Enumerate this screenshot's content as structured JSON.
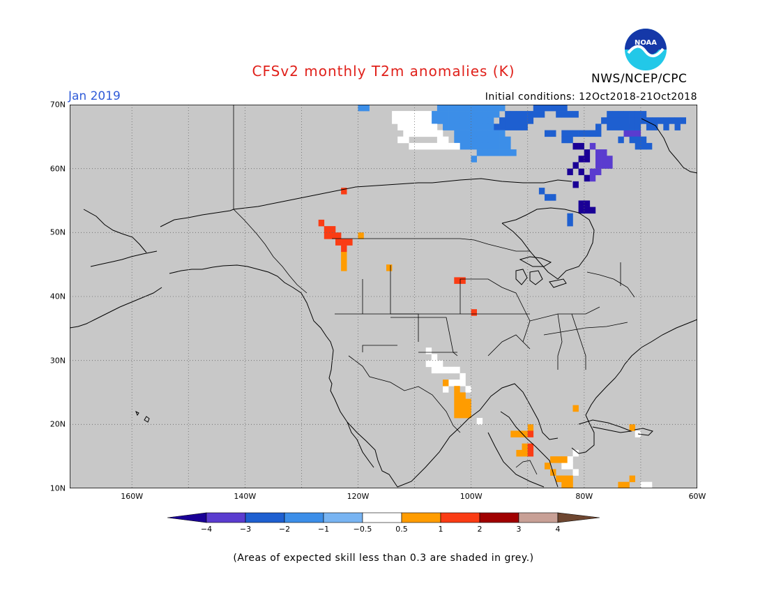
{
  "title": "CFSv2 monthly T2m anomalies (K)",
  "month": "Jan 2019",
  "agency": "NWS/NCEP/CPC",
  "logo_text": "NOAA",
  "initial_conditions": "Initial conditions: 12Oct2018-21Oct2018",
  "footnote": "(Areas of expected skill less than 0.3 are shaded in grey.)",
  "map": {
    "lon_range": [
      -171,
      -60
    ],
    "lat_range": [
      10,
      70
    ],
    "lon_labels": [
      "160W",
      "140W",
      "120W",
      "100W",
      "80W",
      "60W"
    ],
    "lat_labels": [
      "10N",
      "20N",
      "30N",
      "40N",
      "50N",
      "60N",
      "70N"
    ],
    "background_color": "#c8c8c8",
    "gridlines": true
  },
  "colorbar": {
    "labels": [
      "−4",
      "−3",
      "−2",
      "−1",
      "−0.5",
      "0.5",
      "1",
      "2",
      "3",
      "4"
    ],
    "colors": [
      "#1a0096",
      "#5a3ccf",
      "#1e5fd0",
      "#3c8ee8",
      "#78b4f2",
      "#ffffff",
      "#ff9c00",
      "#fa3c14",
      "#a00000",
      "#c8a096",
      "#6e4630"
    ]
  },
  "anomalies": [
    {
      "level": -4,
      "cells": [
        [
          -82,
          63
        ],
        [
          -81,
          63
        ],
        [
          -80,
          62
        ],
        [
          -80,
          61
        ],
        [
          -81,
          61
        ],
        [
          -82,
          60
        ],
        [
          -81,
          59
        ],
        [
          -80,
          58
        ],
        [
          -81,
          54
        ],
        [
          -80,
          54
        ],
        [
          -81,
          53
        ],
        [
          -80,
          53
        ],
        [
          -79,
          53
        ],
        [
          -82,
          57
        ],
        [
          -83,
          59
        ]
      ]
    },
    {
      "level": -3,
      "cells": [
        [
          -79,
          63
        ],
        [
          -78,
          62
        ],
        [
          -77,
          62
        ],
        [
          -78,
          61
        ],
        [
          -77,
          61
        ],
        [
          -76,
          61
        ],
        [
          -78,
          60
        ],
        [
          -77,
          60
        ],
        [
          -76,
          60
        ],
        [
          -79,
          59
        ],
        [
          -78,
          59
        ],
        [
          -79,
          58
        ],
        [
          -73,
          65
        ],
        [
          -72,
          65
        ],
        [
          -71,
          65
        ],
        [
          -73,
          66
        ]
      ]
    },
    {
      "level": -2,
      "cells": [
        [
          -96,
          66
        ],
        [
          -95,
          66
        ],
        [
          -94,
          66
        ],
        [
          -93,
          66
        ],
        [
          -92,
          66
        ],
        [
          -91,
          66
        ],
        [
          -95,
          67
        ],
        [
          -94,
          67
        ],
        [
          -93,
          67
        ],
        [
          -92,
          67
        ],
        [
          -91,
          67
        ],
        [
          -90,
          67
        ],
        [
          -94,
          68
        ],
        [
          -93,
          68
        ],
        [
          -92,
          68
        ],
        [
          -91,
          68
        ],
        [
          -90,
          68
        ],
        [
          -89,
          68
        ],
        [
          -88,
          68
        ],
        [
          -85,
          68
        ],
        [
          -84,
          68
        ],
        [
          -83,
          68
        ],
        [
          -82,
          68
        ],
        [
          -89,
          69
        ],
        [
          -88,
          69
        ],
        [
          -87,
          69
        ],
        [
          -86,
          69
        ],
        [
          -85,
          69
        ],
        [
          -84,
          69
        ],
        [
          -76,
          68
        ],
        [
          -75,
          68
        ],
        [
          -74,
          68
        ],
        [
          -73,
          68
        ],
        [
          -72,
          68
        ],
        [
          -71,
          68
        ],
        [
          -70,
          68
        ],
        [
          -77,
          67
        ],
        [
          -76,
          67
        ],
        [
          -75,
          67
        ],
        [
          -74,
          67
        ],
        [
          -73,
          67
        ],
        [
          -72,
          67
        ],
        [
          -71,
          67
        ],
        [
          -70,
          67
        ],
        [
          -69,
          67
        ],
        [
          -68,
          67
        ],
        [
          -67,
          67
        ],
        [
          -66,
          67
        ],
        [
          -65,
          67
        ],
        [
          -64,
          67
        ],
        [
          -63,
          67
        ],
        [
          -76,
          66
        ],
        [
          -75,
          66
        ],
        [
          -74,
          66
        ],
        [
          -73,
          66
        ],
        [
          -72,
          66
        ],
        [
          -71,
          66
        ],
        [
          -69,
          66
        ],
        [
          -68,
          66
        ],
        [
          -66,
          66
        ],
        [
          -64,
          66
        ],
        [
          -78,
          66
        ],
        [
          -84,
          65
        ],
        [
          -83,
          65
        ],
        [
          -82,
          65
        ],
        [
          -81,
          65
        ],
        [
          -80,
          65
        ],
        [
          -87,
          65
        ],
        [
          -86,
          65
        ],
        [
          -79,
          65
        ],
        [
          -78,
          65
        ],
        [
          -84,
          64
        ],
        [
          -83,
          64
        ],
        [
          -74,
          64
        ],
        [
          -71,
          64
        ],
        [
          -70,
          64
        ],
        [
          -72,
          64
        ],
        [
          -71,
          63
        ],
        [
          -70,
          63
        ],
        [
          -69,
          63
        ],
        [
          -88,
          56
        ],
        [
          -87,
          55
        ],
        [
          -86,
          55
        ],
        [
          -83,
          52
        ],
        [
          -83,
          51
        ]
      ]
    },
    {
      "level": -1,
      "cells": [
        [
          -107,
          67
        ],
        [
          -106,
          67
        ],
        [
          -105,
          67
        ],
        [
          -104,
          67
        ],
        [
          -103,
          67
        ],
        [
          -102,
          67
        ],
        [
          -101,
          67
        ],
        [
          -100,
          67
        ],
        [
          -99,
          67
        ],
        [
          -98,
          67
        ],
        [
          -97,
          67
        ],
        [
          -107,
          68
        ],
        [
          -106,
          68
        ],
        [
          -105,
          68
        ],
        [
          -104,
          68
        ],
        [
          -103,
          68
        ],
        [
          -102,
          68
        ],
        [
          -101,
          68
        ],
        [
          -100,
          68
        ],
        [
          -99,
          68
        ],
        [
          -98,
          68
        ],
        [
          -97,
          68
        ],
        [
          -96,
          68
        ],
        [
          -106,
          69
        ],
        [
          -105,
          69
        ],
        [
          -104,
          69
        ],
        [
          -103,
          69
        ],
        [
          -102,
          69
        ],
        [
          -101,
          69
        ],
        [
          -100,
          69
        ],
        [
          -99,
          69
        ],
        [
          -98,
          69
        ],
        [
          -97,
          69
        ],
        [
          -96,
          69
        ],
        [
          -95,
          69
        ],
        [
          -105,
          66
        ],
        [
          -104,
          66
        ],
        [
          -103,
          66
        ],
        [
          -102,
          66
        ],
        [
          -101,
          66
        ],
        [
          -100,
          66
        ],
        [
          -99,
          66
        ],
        [
          -98,
          66
        ],
        [
          -97,
          66
        ],
        [
          -103,
          65
        ],
        [
          -102,
          65
        ],
        [
          -101,
          65
        ],
        [
          -100,
          65
        ],
        [
          -99,
          65
        ],
        [
          -98,
          65
        ],
        [
          -97,
          65
        ],
        [
          -96,
          65
        ],
        [
          -95,
          65
        ],
        [
          -102,
          64
        ],
        [
          -101,
          64
        ],
        [
          -100,
          64
        ],
        [
          -99,
          64
        ],
        [
          -98,
          64
        ],
        [
          -97,
          64
        ],
        [
          -96,
          64
        ],
        [
          -95,
          64
        ],
        [
          -94,
          64
        ],
        [
          -101,
          63
        ],
        [
          -100,
          63
        ],
        [
          -99,
          63
        ],
        [
          -98,
          63
        ],
        [
          -97,
          63
        ],
        [
          -96,
          63
        ],
        [
          -95,
          63
        ],
        [
          -94,
          63
        ],
        [
          -99,
          62
        ],
        [
          -98,
          62
        ],
        [
          -97,
          62
        ],
        [
          -96,
          62
        ],
        [
          -95,
          62
        ],
        [
          -94,
          62
        ],
        [
          -93,
          62
        ],
        [
          -103,
          64
        ],
        [
          -102,
          63
        ],
        [
          -120,
          69
        ],
        [
          -119,
          69
        ],
        [
          -112,
          70
        ],
        [
          -111,
          70
        ],
        [
          -100,
          61
        ]
      ]
    },
    {
      "level": -0.5,
      "cells": [
        [
          -114,
          68
        ],
        [
          -113,
          68
        ],
        [
          -112,
          68
        ],
        [
          -111,
          68
        ],
        [
          -110,
          68
        ],
        [
          -109,
          68
        ],
        [
          -108,
          68
        ],
        [
          -114,
          67
        ],
        [
          -113,
          67
        ],
        [
          -112,
          67
        ],
        [
          -111,
          67
        ],
        [
          -110,
          67
        ],
        [
          -109,
          67
        ],
        [
          -108,
          67
        ],
        [
          -113,
          66
        ],
        [
          -112,
          66
        ],
        [
          -111,
          66
        ],
        [
          -110,
          66
        ],
        [
          -109,
          66
        ],
        [
          -108,
          66
        ],
        [
          -107,
          66
        ],
        [
          -112,
          65
        ],
        [
          -111,
          65
        ],
        [
          -110,
          65
        ],
        [
          -109,
          65
        ],
        [
          -108,
          65
        ],
        [
          -107,
          65
        ],
        [
          -106,
          65
        ],
        [
          -113,
          64
        ],
        [
          -112,
          64
        ],
        [
          -106,
          64
        ],
        [
          -105,
          64
        ],
        [
          -111,
          63
        ],
        [
          -110,
          63
        ],
        [
          -109,
          63
        ],
        [
          -108,
          63
        ],
        [
          -107,
          63
        ],
        [
          -106,
          63
        ],
        [
          -105,
          63
        ],
        [
          -104,
          63
        ],
        [
          -103,
          63
        ],
        [
          -107,
          70
        ],
        [
          -106,
          70
        ],
        [
          -105,
          70
        ],
        [
          -104,
          70
        ],
        [
          -103,
          70
        ],
        [
          -108,
          31
        ],
        [
          -107,
          30
        ],
        [
          -108,
          29
        ],
        [
          -107,
          29
        ],
        [
          -106,
          29
        ],
        [
          -107,
          28
        ],
        [
          -106,
          28
        ],
        [
          -105,
          28
        ],
        [
          -104,
          28
        ],
        [
          -103,
          28
        ],
        [
          -102,
          27
        ],
        [
          -104,
          26
        ],
        [
          -103,
          26
        ],
        [
          -105,
          25
        ],
        [
          -102,
          26
        ],
        [
          -101,
          25
        ],
        [
          -99,
          20
        ],
        [
          -83,
          14
        ],
        [
          -82,
          15
        ],
        [
          -84,
          13
        ],
        [
          -83,
          13
        ],
        [
          -82,
          12
        ],
        [
          -70,
          10
        ],
        [
          -69,
          10
        ],
        [
          -71,
          18
        ]
      ]
    },
    {
      "level": 0.5,
      "cells": [
        [
          -123,
          46
        ],
        [
          -123,
          45
        ],
        [
          -123,
          44
        ],
        [
          -115,
          44
        ],
        [
          -120,
          49
        ],
        [
          -105,
          26
        ],
        [
          -103,
          25
        ],
        [
          -103,
          24
        ],
        [
          -102,
          24
        ],
        [
          -101,
          23
        ],
        [
          -103,
          23
        ],
        [
          -102,
          23
        ],
        [
          -101,
          22
        ],
        [
          -103,
          22
        ],
        [
          -102,
          22
        ],
        [
          -103,
          21
        ],
        [
          -102,
          21
        ],
        [
          -101,
          21
        ],
        [
          -90,
          19
        ],
        [
          -91,
          18
        ],
        [
          -92,
          18
        ],
        [
          -93,
          18
        ],
        [
          -91,
          16
        ],
        [
          -91,
          15
        ],
        [
          -92,
          15
        ],
        [
          -87,
          13
        ],
        [
          -86,
          14
        ],
        [
          -85,
          14
        ],
        [
          -84,
          14
        ],
        [
          -86,
          12
        ],
        [
          -85,
          11
        ],
        [
          -84,
          11
        ],
        [
          -83,
          11
        ],
        [
          -84,
          10
        ],
        [
          -83,
          10
        ],
        [
          -74,
          10
        ],
        [
          -73,
          10
        ],
        [
          -72,
          11
        ],
        [
          -82,
          22
        ],
        [
          -72,
          19
        ]
      ]
    },
    {
      "level": 1,
      "cells": [
        [
          -123,
          56
        ],
        [
          -127,
          51
        ],
        [
          -126,
          50
        ],
        [
          -126,
          49
        ],
        [
          -125,
          50
        ],
        [
          -125,
          49
        ],
        [
          -124,
          49
        ],
        [
          -124,
          48
        ],
        [
          -123,
          48
        ],
        [
          -123,
          47
        ],
        [
          -122,
          48
        ],
        [
          -103,
          42
        ],
        [
          -102,
          42
        ],
        [
          -100,
          37
        ],
        [
          -90,
          18
        ],
        [
          -90,
          16
        ],
        [
          -90,
          15
        ]
      ]
    }
  ]
}
